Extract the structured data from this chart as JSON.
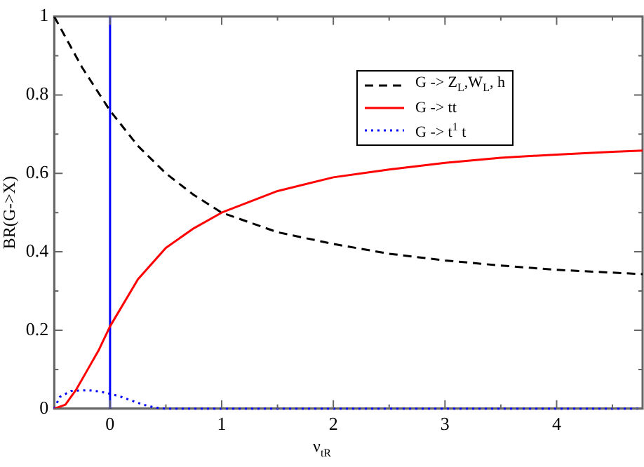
{
  "chart_data": {
    "type": "line",
    "xlabel": "ν$_{tR}$",
    "ylabel": "BR(G->X)",
    "xlim": [
      -0.5,
      4.77
    ],
    "ylim": [
      0,
      1
    ],
    "xticks": [
      0,
      1,
      2,
      3,
      4,
      {
        "value": 0.5,
        "label": null
      },
      {
        "value": 1.5,
        "label": null
      },
      {
        "value": 2.5,
        "label": null
      },
      {
        "value": 3.5,
        "label": null
      },
      {
        "value": 4.5,
        "label": null
      }
    ],
    "yticks": [
      0,
      0.2,
      0.4,
      0.6,
      0.8,
      1,
      {
        "value": 0.1,
        "label": null
      },
      {
        "value": 0.3,
        "label": null
      },
      {
        "value": 0.5,
        "label": null
      },
      {
        "value": 0.7,
        "label": null
      },
      {
        "value": 0.9,
        "label": null
      }
    ],
    "grid": false,
    "legend": "top right",
    "marker": "none",
    "series": [
      {
        "name": "G -> Z$_{L}$,W$_{L}$, h",
        "color": "#000000",
        "line_style": "dashed",
        "x": [
          -0.5,
          -0.25,
          0,
          0.25,
          0.5,
          0.75,
          1,
          1.5,
          2,
          2.5,
          3,
          3.5,
          4,
          4.5,
          4.77
        ],
        "values": [
          1,
          0.87,
          0.76,
          0.67,
          0.6,
          0.545,
          0.5,
          0.45,
          0.42,
          0.395,
          0.378,
          0.365,
          0.354,
          0.347,
          0.343
        ]
      },
      {
        "name": "G -> tt",
        "color": "#ff0000",
        "line_style": "solid",
        "x": [
          -0.5,
          -0.4,
          -0.3,
          -0.2,
          -0.1,
          0,
          0.25,
          0.5,
          0.75,
          1,
          1.5,
          2,
          2.5,
          3,
          3.5,
          4,
          4.5,
          4.77
        ],
        "values": [
          0,
          0.01,
          0.05,
          0.1,
          0.15,
          0.21,
          0.33,
          0.41,
          0.46,
          0.5,
          0.555,
          0.59,
          0.61,
          0.627,
          0.64,
          0.648,
          0.655,
          0.658
        ]
      },
      {
        "name": "G -> t$^{1}$ t",
        "color": "#0000ff",
        "line_style": "dotted",
        "x": [
          -0.5,
          -0.45,
          -0.35,
          -0.2,
          -0.1,
          0,
          0.1,
          0.2,
          0.3,
          0.4,
          0.5,
          4.77
        ],
        "values": [
          0,
          0.03,
          0.045,
          0.047,
          0.044,
          0.038,
          0.03,
          0.02,
          0.01,
          0.003,
          0,
          0
        ]
      }
    ],
    "ref_lines": [
      {
        "axis": "x",
        "value": 0,
        "label": null,
        "color": "#0000ff"
      }
    ]
  }
}
